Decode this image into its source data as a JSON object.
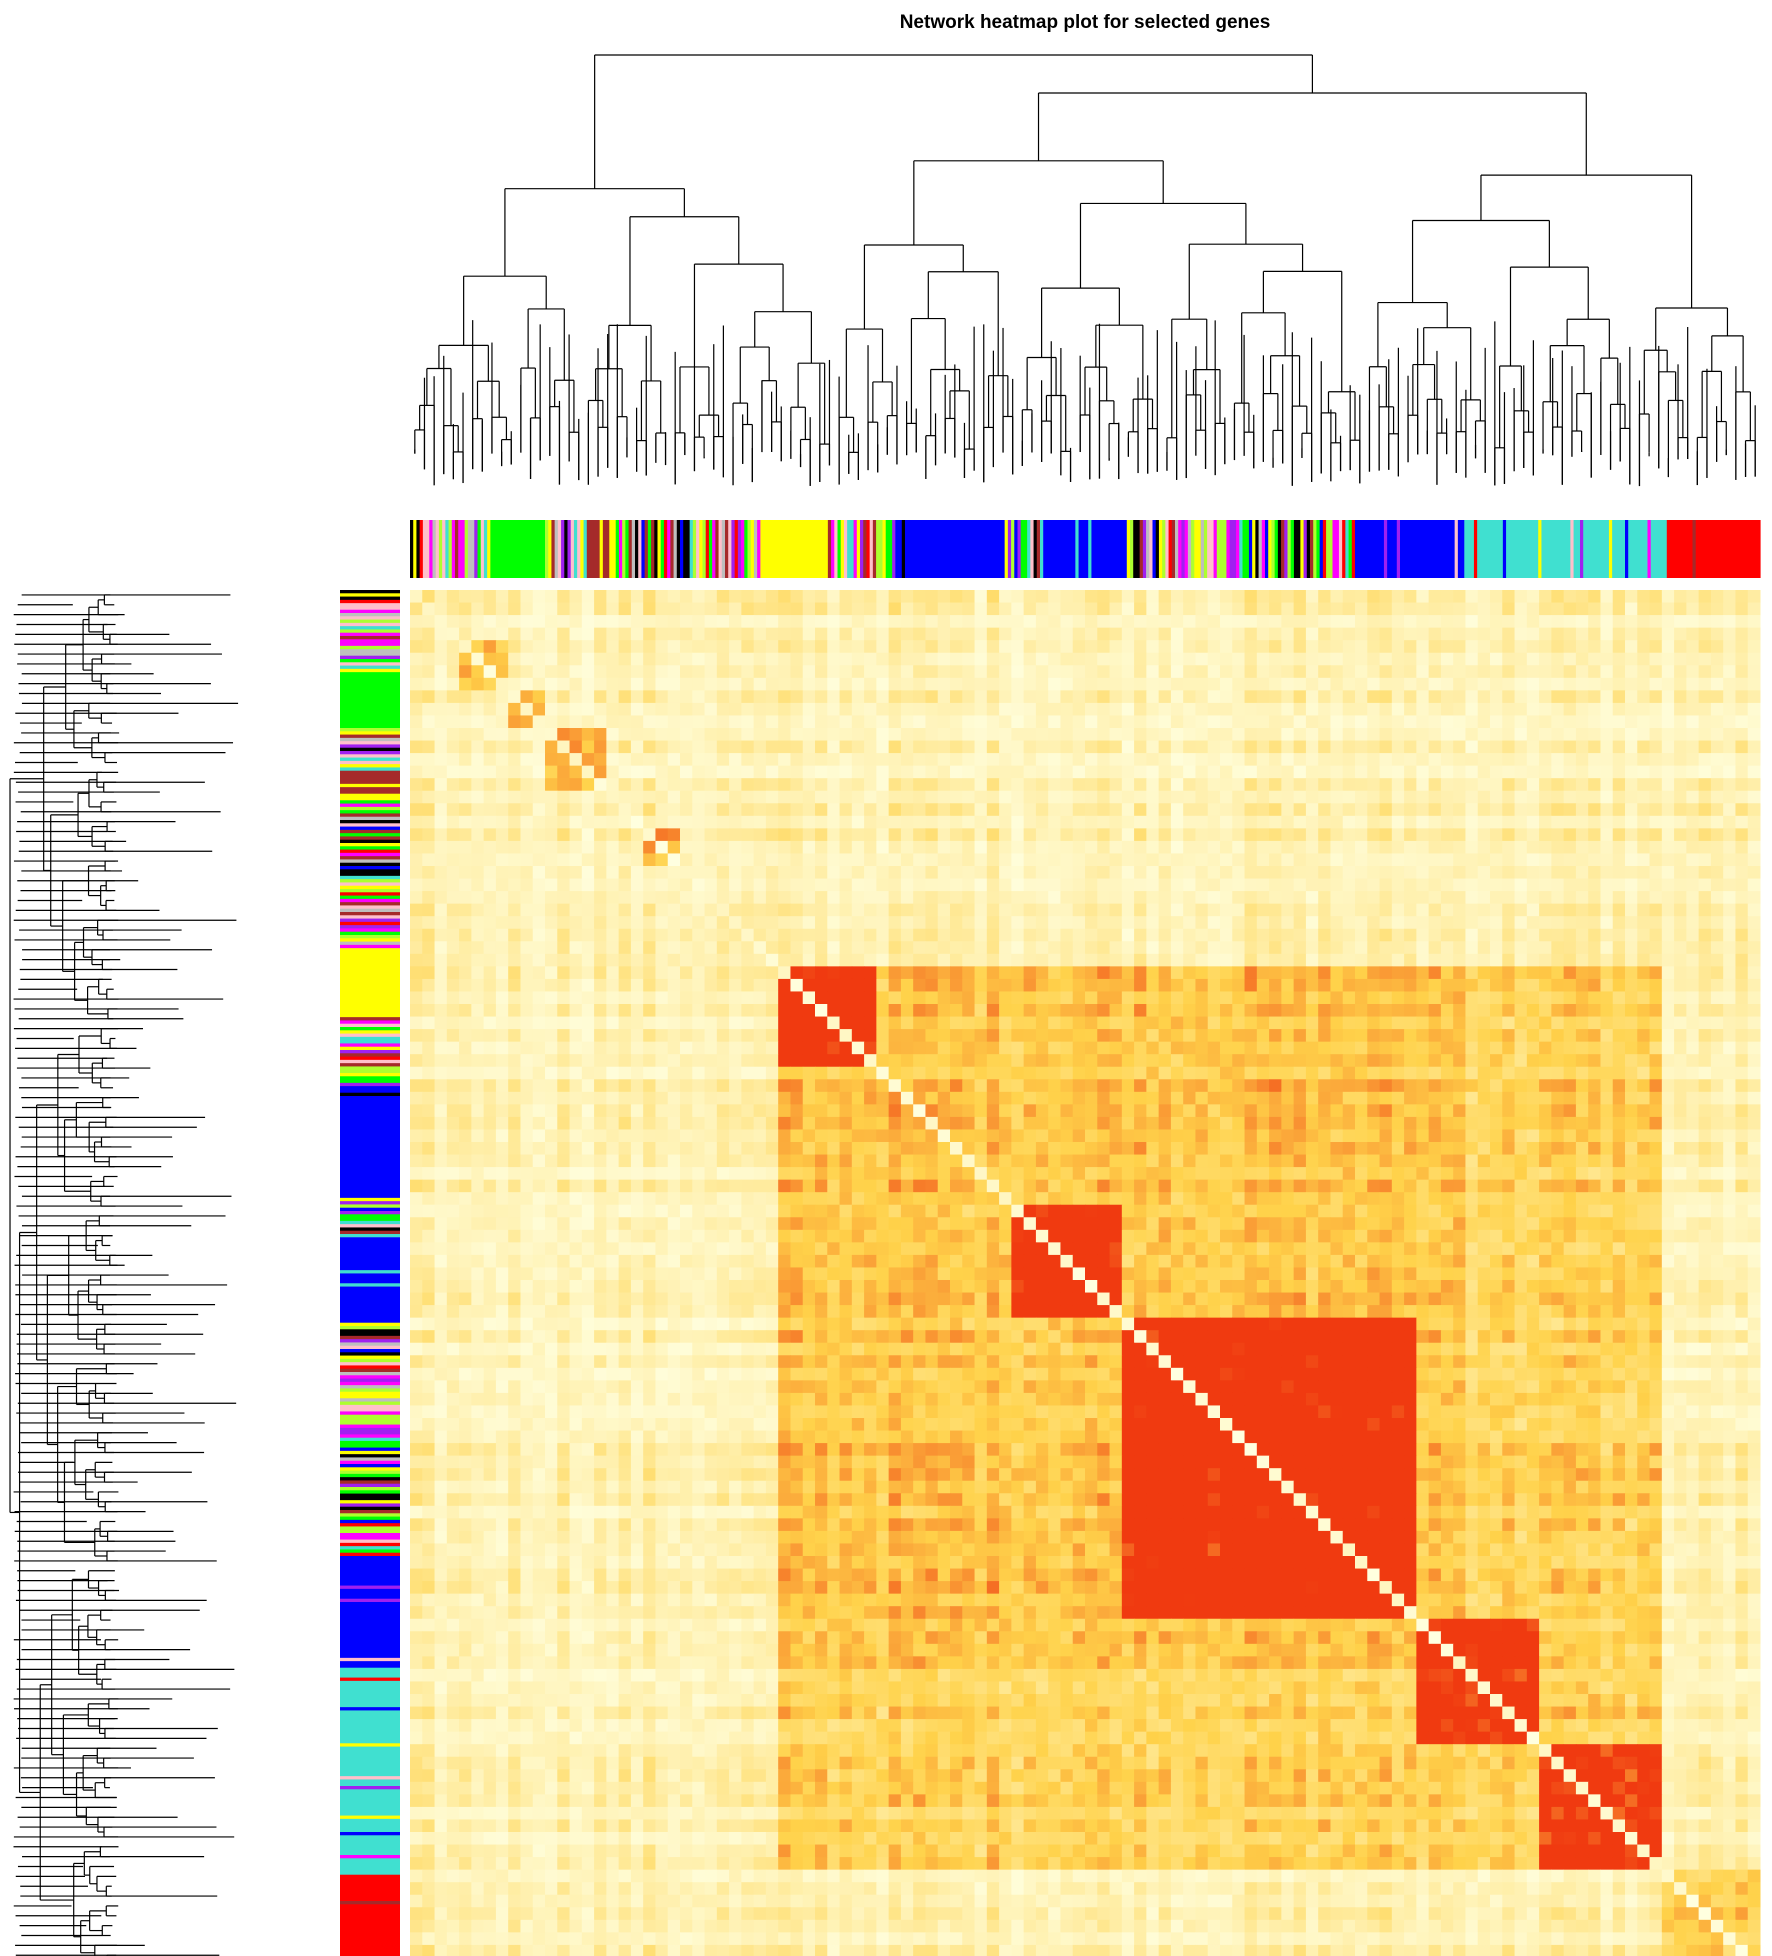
{
  "chart_data": {
    "type": "heatmap",
    "title": "Network heatmap plot for selected genes",
    "description_kind": "TOM network heatmap with gene dendrograms and module color bars",
    "colormap": {
      "low": "#FFFFE0",
      "mid": "#FFD24A",
      "high": "#F03A10"
    },
    "module_order": [
      "turquoise",
      "blue",
      "brown",
      "yellow",
      "green",
      "red",
      "black",
      "pink",
      "magenta",
      "purple",
      "greenyellow",
      "grey"
    ],
    "module_colors": {
      "turquoise": "#40E0D0",
      "blue": "#0000FF",
      "brown": "#A52A2A",
      "yellow": "#FFFF00",
      "green": "#00FF00",
      "red": "#FF0000",
      "black": "#000000",
      "pink": "#FFC0CB",
      "magenta": "#FF00FF",
      "purple": "#A020F0",
      "greenyellow": "#ADFF2F",
      "grey": "#BEBEBE"
    },
    "module_blocks": [
      {
        "module": "mixed",
        "start": 0.0,
        "end": 0.06
      },
      {
        "module": "green",
        "start": 0.06,
        "end": 0.1
      },
      {
        "module": "mixed",
        "start": 0.1,
        "end": 0.13
      },
      {
        "module": "brown",
        "start": 0.13,
        "end": 0.15
      },
      {
        "module": "mixed",
        "start": 0.15,
        "end": 0.26
      },
      {
        "module": "yellow",
        "start": 0.26,
        "end": 0.31
      },
      {
        "module": "mixed",
        "start": 0.31,
        "end": 0.36
      },
      {
        "module": "blue",
        "start": 0.36,
        "end": 0.44
      },
      {
        "module": "mixed",
        "start": 0.44,
        "end": 0.47
      },
      {
        "module": "blue",
        "start": 0.47,
        "end": 0.53
      },
      {
        "module": "mixed",
        "start": 0.53,
        "end": 0.7
      },
      {
        "module": "blue",
        "start": 0.7,
        "end": 0.78
      },
      {
        "module": "turquoise",
        "start": 0.78,
        "end": 0.93
      },
      {
        "module": "red",
        "start": 0.93,
        "end": 1.0
      }
    ],
    "diagonal_blocks": [
      {
        "module": "pink",
        "start": 0.04,
        "end": 0.07,
        "strength": 0.55
      },
      {
        "module": "green",
        "start": 0.07,
        "end": 0.1,
        "strength": 0.65
      },
      {
        "module": "brown",
        "start": 0.1,
        "end": 0.15,
        "strength": 0.7
      },
      {
        "module": "magenta",
        "start": 0.17,
        "end": 0.2,
        "strength": 0.65
      },
      {
        "module": "yellow",
        "start": 0.27,
        "end": 0.35,
        "strength": 0.85
      },
      {
        "module": "blue",
        "start": 0.45,
        "end": 0.53,
        "strength": 0.85
      },
      {
        "module": "blue",
        "start": 0.53,
        "end": 0.75,
        "strength": 0.9
      },
      {
        "module": "turquoise",
        "start": 0.75,
        "end": 0.84,
        "strength": 0.9
      },
      {
        "module": "turquoise",
        "start": 0.84,
        "end": 0.93,
        "strength": 0.8
      },
      {
        "module": "red",
        "start": 0.93,
        "end": 1.0,
        "strength": 0.45
      }
    ],
    "grid": false,
    "legend": "none"
  }
}
